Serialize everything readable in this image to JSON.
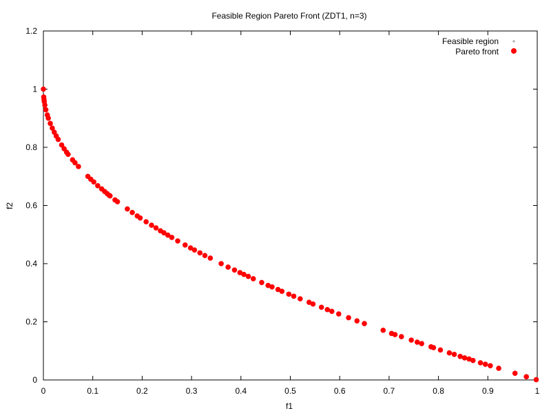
{
  "chart_data": {
    "type": "scatter",
    "title": "Feasible Region  Pareto Front (ZDT1, n=3)",
    "xlabel": "f1",
    "ylabel": "f2",
    "xlim": [
      0,
      1
    ],
    "ylim": [
      0,
      1.2
    ],
    "xticks": [
      "0",
      "0.1",
      "0.2",
      "0.3",
      "0.4",
      "0.5",
      "0.6",
      "0.7",
      "0.8",
      "0.9",
      "1"
    ],
    "yticks": [
      "0",
      "0.2",
      "0.4",
      "0.6",
      "0.8",
      "1",
      "1.2"
    ],
    "grid": false,
    "legend_position": "top-right",
    "series": [
      {
        "name": "Feasible region",
        "color": "#aaaaaa",
        "marker": "small-dot",
        "points": []
      },
      {
        "name": "Pareto front",
        "color": "#ff0000",
        "marker": "filled-circle",
        "x": [
          0,
          0.0007,
          0.0013,
          0.0018,
          0.003,
          0.005,
          0.008,
          0.01,
          0.014,
          0.018,
          0.022,
          0.026,
          0.03,
          0.037,
          0.042,
          0.047,
          0.05,
          0.059,
          0.064,
          0.071,
          0.09,
          0.096,
          0.102,
          0.11,
          0.118,
          0.124,
          0.129,
          0.133,
          0.135,
          0.145,
          0.15,
          0.17,
          0.18,
          0.19,
          0.196,
          0.208,
          0.219,
          0.228,
          0.237,
          0.244,
          0.252,
          0.26,
          0.272,
          0.287,
          0.298,
          0.306,
          0.317,
          0.327,
          0.338,
          0.36,
          0.374,
          0.387,
          0.398,
          0.406,
          0.415,
          0.425,
          0.442,
          0.455,
          0.463,
          0.475,
          0.483,
          0.497,
          0.507,
          0.52,
          0.538,
          0.546,
          0.563,
          0.575,
          0.584,
          0.598,
          0.618,
          0.635,
          0.65,
          0.688,
          0.705,
          0.712,
          0.725,
          0.745,
          0.757,
          0.766,
          0.785,
          0.79,
          0.804,
          0.822,
          0.832,
          0.844,
          0.853,
          0.862,
          0.87,
          0.885,
          0.895,
          0.905,
          0.922,
          0.955,
          0.978,
          0.998
        ],
        "y": [
          1,
          0.973,
          0.964,
          0.957,
          0.945,
          0.929,
          0.911,
          0.9,
          0.882,
          0.866,
          0.852,
          0.839,
          0.827,
          0.808,
          0.795,
          0.783,
          0.776,
          0.757,
          0.747,
          0.734,
          0.7,
          0.69,
          0.681,
          0.668,
          0.657,
          0.648,
          0.641,
          0.635,
          0.633,
          0.619,
          0.613,
          0.588,
          0.576,
          0.564,
          0.557,
          0.544,
          0.532,
          0.523,
          0.513,
          0.506,
          0.498,
          0.49,
          0.478,
          0.464,
          0.454,
          0.447,
          0.437,
          0.428,
          0.419,
          0.4,
          0.388,
          0.378,
          0.369,
          0.363,
          0.356,
          0.348,
          0.335,
          0.325,
          0.32,
          0.311,
          0.305,
          0.295,
          0.288,
          0.279,
          0.267,
          0.261,
          0.25,
          0.242,
          0.236,
          0.227,
          0.214,
          0.203,
          0.194,
          0.171,
          0.16,
          0.156,
          0.149,
          0.137,
          0.13,
          0.125,
          0.114,
          0.111,
          0.103,
          0.093,
          0.088,
          0.081,
          0.076,
          0.072,
          0.067,
          0.059,
          0.054,
          0.049,
          0.04,
          0.023,
          0.011,
          0.001
        ]
      }
    ]
  }
}
